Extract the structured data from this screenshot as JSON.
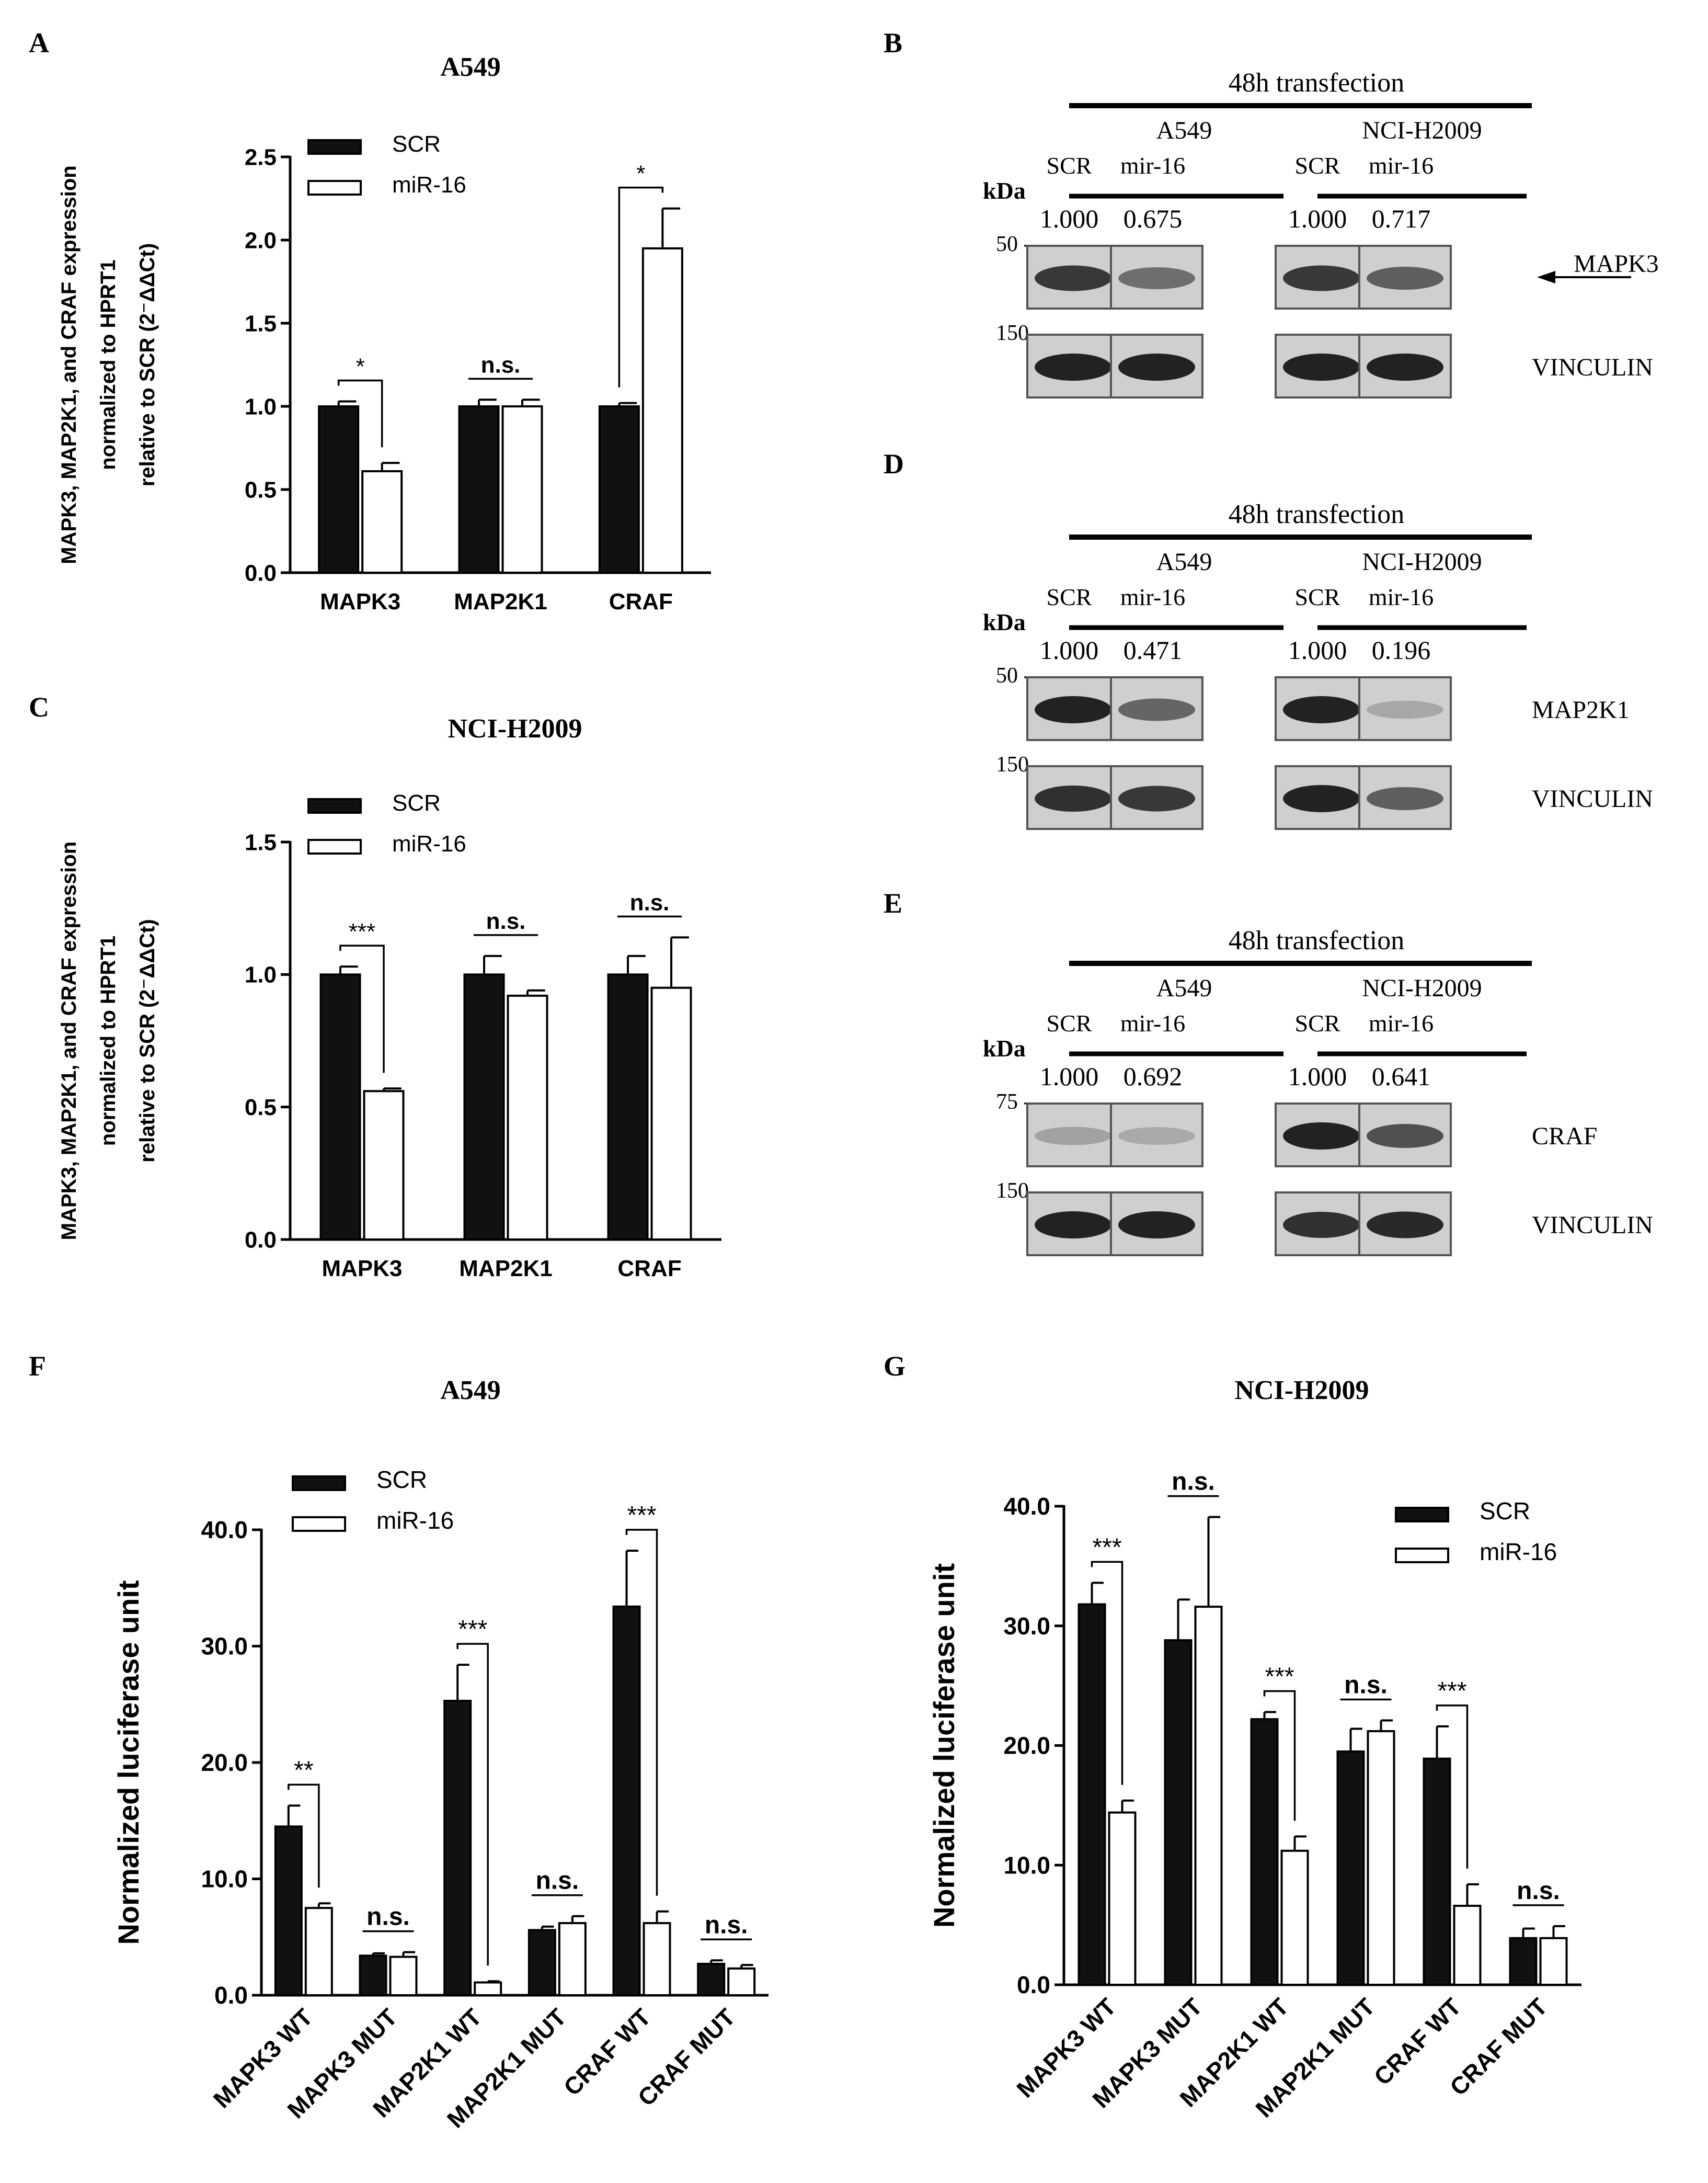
{
  "colors": {
    "scr": "#111111",
    "mir": "#ffffff",
    "stroke": "#000000",
    "band": "#1c1c1c",
    "blot_bg": "#cfcfcf"
  },
  "panels": {
    "A": "A",
    "B": "B",
    "C": "C",
    "D": "D",
    "E": "E",
    "F": "F",
    "G": "G"
  },
  "legend": {
    "scr": "SCR",
    "mir": "miR-16"
  },
  "chart_data": [
    {
      "id": "A",
      "type": "bar",
      "title": "A549",
      "ylabel_lines": [
        "MAPK3, MAP2K1, and CRAF expression",
        "normalized to HPRT1",
        "relative to SCR (2⁻ΔΔCt)"
      ],
      "categories": [
        "MAPK3",
        "MAP2K1",
        "CRAF"
      ],
      "series": [
        {
          "name": "SCR",
          "values": [
            1.0,
            1.0,
            1.0
          ],
          "errors": [
            0.03,
            0.04,
            0.02
          ]
        },
        {
          "name": "miR-16",
          "values": [
            0.61,
            1.0,
            1.95
          ],
          "errors": [
            0.05,
            0.04,
            0.24
          ]
        }
      ],
      "ylim": [
        0,
        2.5
      ],
      "yticks": [
        0,
        0.5,
        1.0,
        1.5,
        2.0,
        2.5
      ],
      "ytick_labels": [
        "0.0",
        "0.5",
        "1.0",
        "1.5",
        "2.0",
        "2.5"
      ],
      "significance": [
        "*",
        "n.s.",
        "*"
      ]
    },
    {
      "id": "C",
      "type": "bar",
      "title": "NCI-H2009",
      "ylabel_lines": [
        "MAPK3, MAP2K1, and CRAF expression",
        "normalized to HPRT1",
        "relative to SCR (2⁻ΔΔCt)"
      ],
      "categories": [
        "MAPK3",
        "MAP2K1",
        "CRAF"
      ],
      "series": [
        {
          "name": "SCR",
          "values": [
            1.0,
            1.0,
            1.0
          ],
          "errors": [
            0.03,
            0.07,
            0.07
          ]
        },
        {
          "name": "miR-16",
          "values": [
            0.56,
            0.92,
            0.95
          ],
          "errors": [
            0.01,
            0.02,
            0.19
          ]
        }
      ],
      "ylim": [
        0,
        1.5
      ],
      "yticks": [
        0,
        0.5,
        1.0,
        1.5
      ],
      "ytick_labels": [
        "0.0",
        "0.5",
        "1.0",
        "1.5"
      ],
      "significance": [
        "***",
        "n.s.",
        "n.s."
      ]
    },
    {
      "id": "F",
      "type": "bar",
      "title": "A549",
      "ylabel_lines": [
        "Normalized luciferase unit"
      ],
      "categories": [
        "MAPK3 WT",
        "MAPK3 MUT",
        "MAP2K1 WT",
        "MAP2K1 MUT",
        "CRAF WT",
        "CRAF MUT"
      ],
      "series": [
        {
          "name": "SCR",
          "values": [
            14.5,
            3.4,
            25.3,
            5.6,
            33.4,
            2.7
          ],
          "errors": [
            1.8,
            0.2,
            3.1,
            0.3,
            4.8,
            0.3
          ]
        },
        {
          "name": "miR-16",
          "values": [
            7.5,
            3.3,
            1.1,
            6.2,
            6.2,
            2.3
          ],
          "errors": [
            0.4,
            0.4,
            0.1,
            0.6,
            1.0,
            0.3
          ]
        }
      ],
      "ylim": [
        0,
        40
      ],
      "yticks": [
        0,
        10,
        20,
        30,
        40
      ],
      "ytick_labels": [
        "0.0",
        "10.0",
        "20.0",
        "30.0",
        "40.0"
      ],
      "significance": [
        "**",
        "n.s.",
        "***",
        "n.s.",
        "***",
        "n.s."
      ]
    },
    {
      "id": "G",
      "type": "bar",
      "title": "NCI-H2009",
      "ylabel_lines": [
        "Normalized luciferase unit"
      ],
      "categories": [
        "MAPK3 WT",
        "MAPK3 MUT",
        "MAP2K1 WT",
        "MAP2K1 MUT",
        "CRAF WT",
        "CRAF MUT"
      ],
      "series": [
        {
          "name": "SCR",
          "values": [
            31.8,
            28.8,
            22.2,
            19.5,
            18.9,
            3.9
          ],
          "errors": [
            1.8,
            3.4,
            0.6,
            1.9,
            2.7,
            0.8
          ]
        },
        {
          "name": "miR-16",
          "values": [
            14.4,
            31.6,
            11.2,
            21.2,
            6.6,
            3.9
          ],
          "errors": [
            1.0,
            7.5,
            1.2,
            0.9,
            1.8,
            1.0
          ]
        }
      ],
      "ylim": [
        0,
        40
      ],
      "yticks": [
        0,
        10,
        20,
        30,
        40
      ],
      "ytick_labels": [
        "0.0",
        "10.0",
        "20.0",
        "30.0",
        "40.0"
      ],
      "significance": [
        "***",
        "n.s.",
        "***",
        "n.s.",
        "***",
        "n.s."
      ]
    }
  ],
  "blots": [
    {
      "id": "B",
      "header": "48h transfection",
      "cells": [
        "A549",
        "NCI-H2009"
      ],
      "lanes": [
        "SCR",
        "mir-16",
        "SCR",
        "mir-16"
      ],
      "kda_label": "kDa",
      "quant": [
        "1.000",
        "0.675",
        "1.000",
        "0.717"
      ],
      "rows": [
        {
          "marker": "50 -",
          "protein": "MAPK3",
          "arrow": true,
          "intensity": [
            0.85,
            0.5,
            0.85,
            0.6
          ]
        },
        {
          "marker": "150 -",
          "protein": "VINCULIN",
          "arrow": false,
          "intensity": [
            1.0,
            1.0,
            1.0,
            1.0
          ]
        }
      ]
    },
    {
      "id": "D",
      "header": "48h transfection",
      "cells": [
        "A549",
        "NCI-H2009"
      ],
      "lanes": [
        "SCR",
        "mir-16",
        "SCR",
        "mir-16"
      ],
      "kda_label": "kDa",
      "quant": [
        "1.000",
        "0.471",
        "1.000",
        "0.196"
      ],
      "rows": [
        {
          "marker": "50 -",
          "protein": "MAP2K1",
          "arrow": false,
          "intensity": [
            1.0,
            0.55,
            1.0,
            0.12
          ]
        },
        {
          "marker": "150 -",
          "protein": "VINCULIN",
          "arrow": false,
          "intensity": [
            0.9,
            0.85,
            1.0,
            0.6
          ]
        }
      ]
    },
    {
      "id": "E",
      "header": "48h transfection",
      "cells": [
        "A549",
        "NCI-H2009"
      ],
      "lanes": [
        "SCR",
        "mir-16",
        "SCR",
        "mir-16"
      ],
      "kda_label": "kDa",
      "quant": [
        "1.000",
        "0.692",
        "1.000",
        "0.641"
      ],
      "rows": [
        {
          "marker": "75 -",
          "protein": "CRAF",
          "arrow": false,
          "intensity": [
            0.15,
            0.1,
            1.0,
            0.7
          ]
        },
        {
          "marker": "150 -",
          "protein": "VINCULIN",
          "arrow": false,
          "intensity": [
            1.0,
            1.0,
            0.9,
            0.95
          ]
        }
      ]
    }
  ]
}
